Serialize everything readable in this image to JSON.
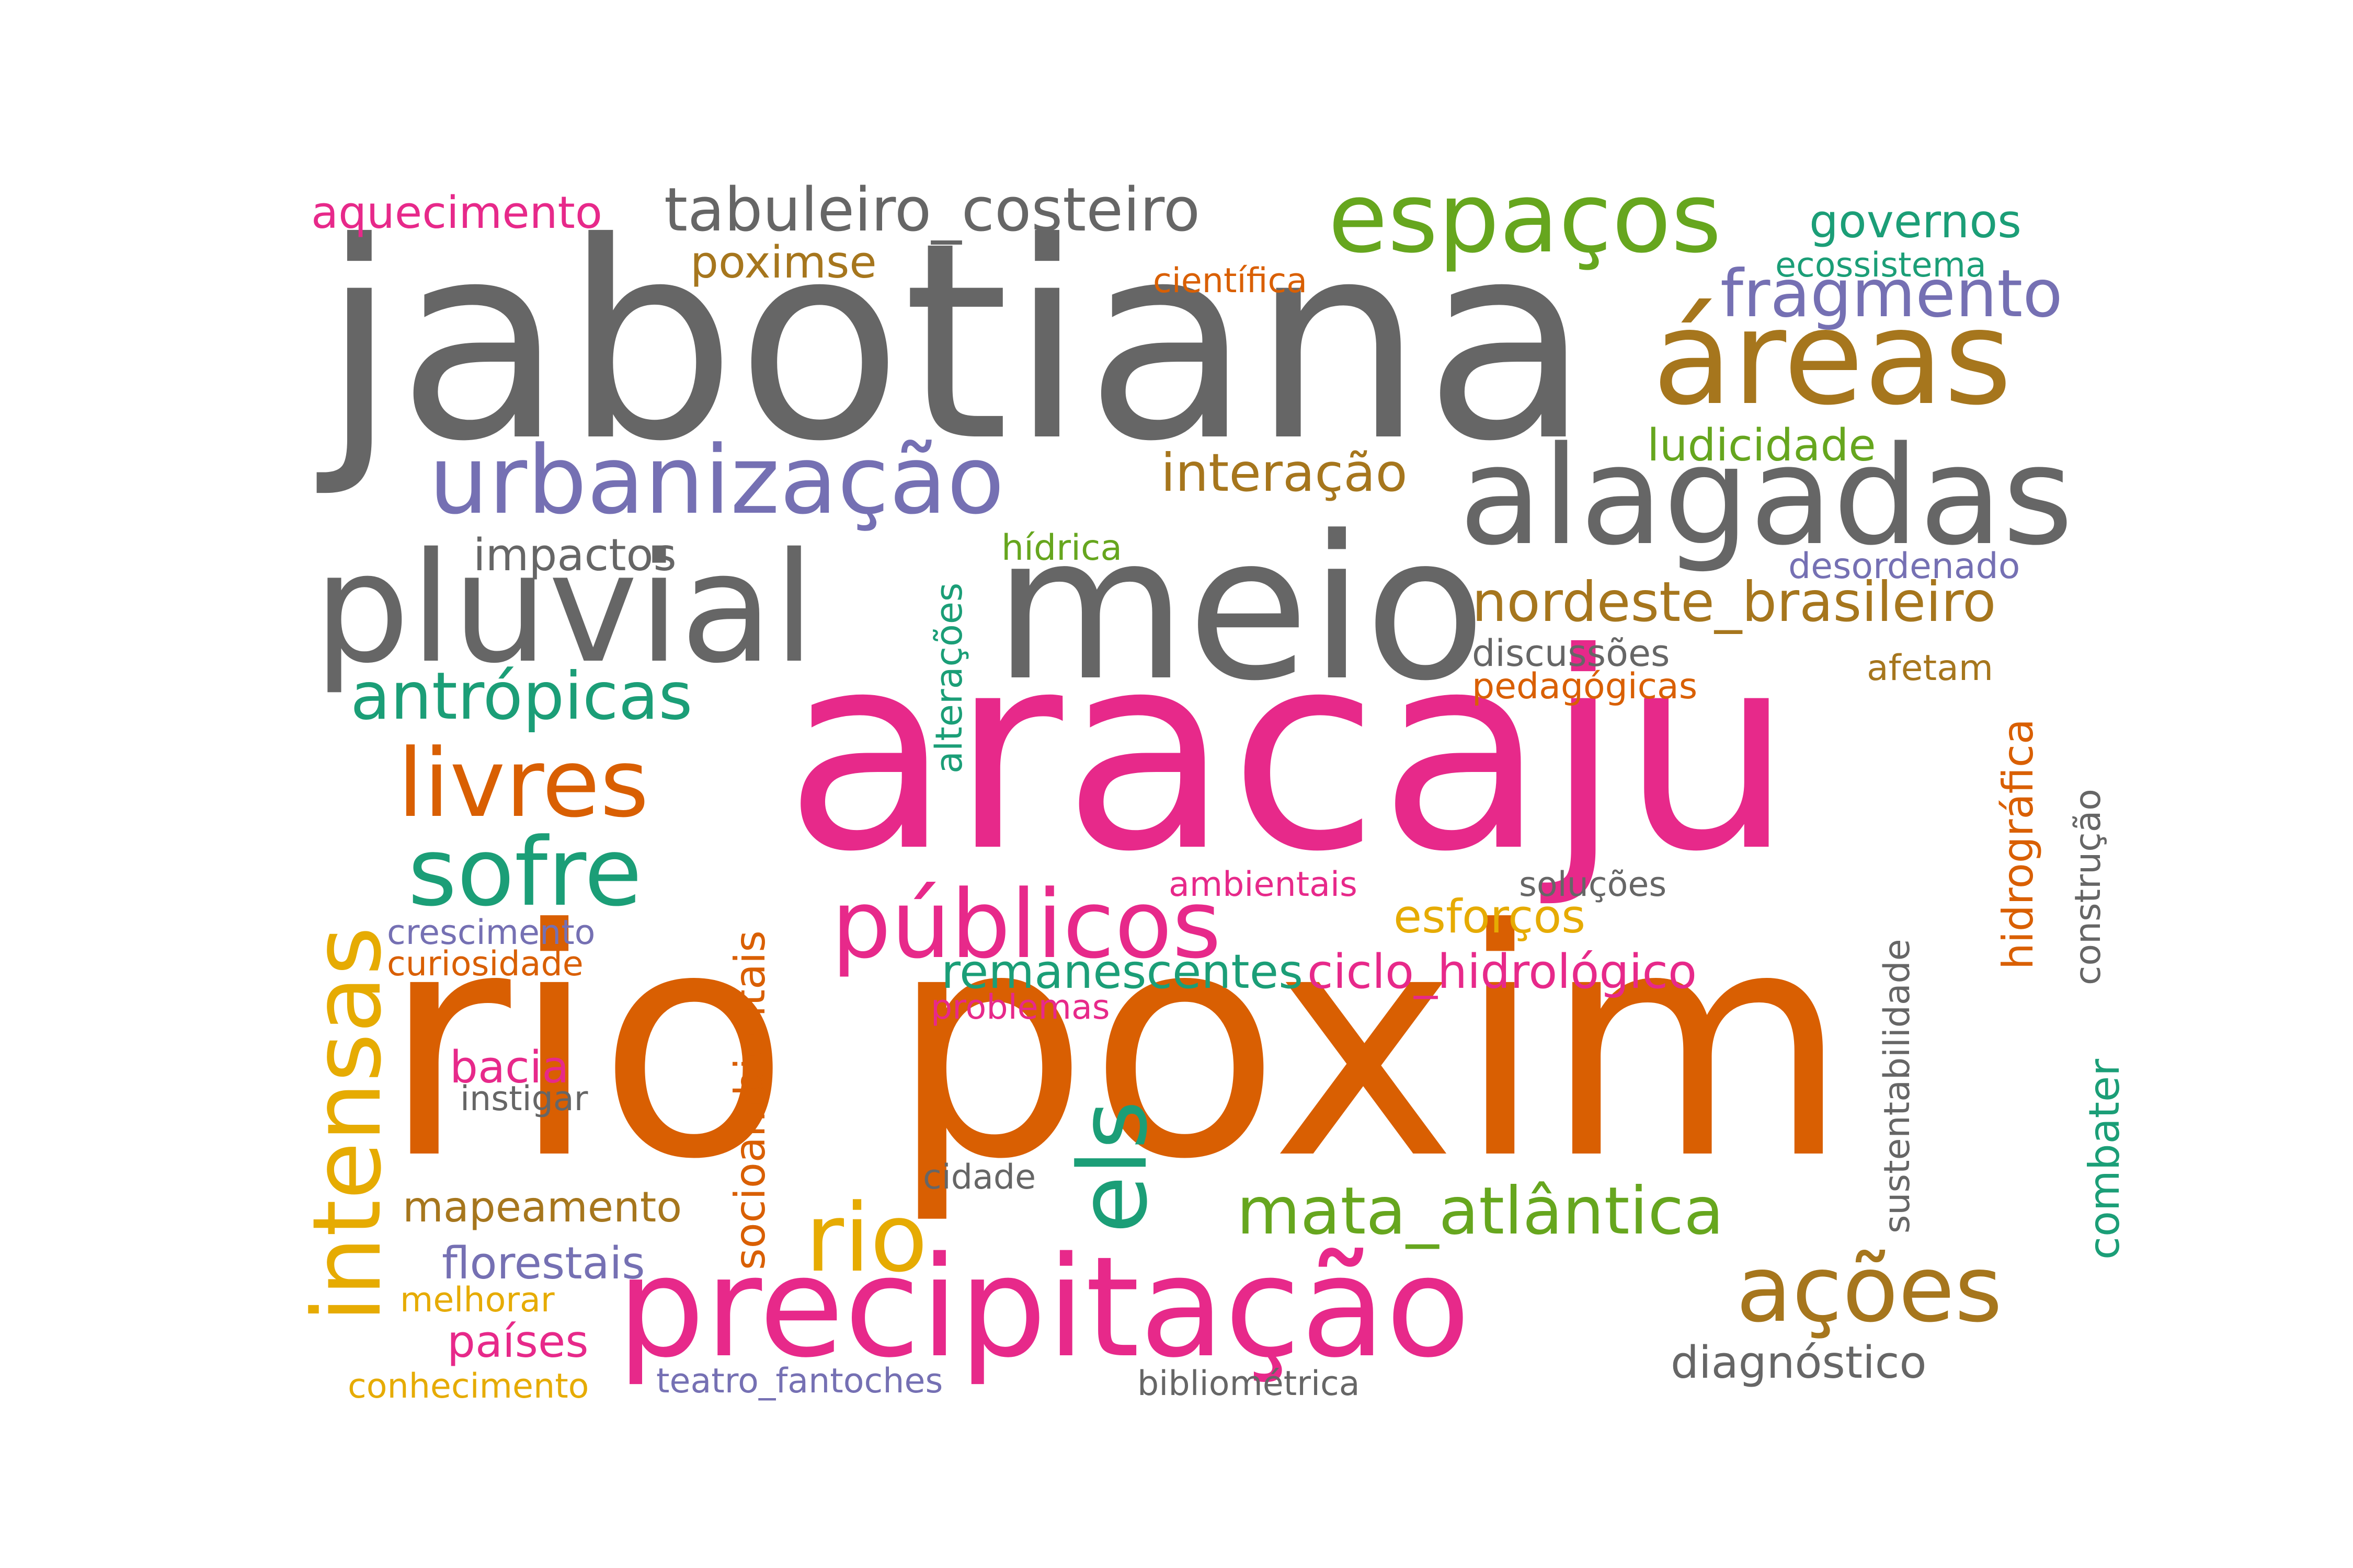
{
  "palette": {
    "gray": "#666666",
    "pink": "#e7298a",
    "orange": "#d95f02",
    "teal": "#1b9e77",
    "purple": "#7570b3",
    "green": "#66a61e",
    "gold": "#e6ab02",
    "brown": "#a6761d"
  },
  "words": [
    {
      "id": "jabotiana",
      "text": "jabotiana",
      "color": "gray"
    },
    {
      "id": "rio-poxim",
      "text": "rio poxim",
      "color": "orange"
    },
    {
      "id": "aracaju",
      "text": "aracaju",
      "color": "pink"
    },
    {
      "id": "meio",
      "text": "meio",
      "color": "gray"
    },
    {
      "id": "pluvial",
      "text": "pluvial",
      "color": "gray"
    },
    {
      "id": "alagadas",
      "text": "alagadas",
      "color": "gray"
    },
    {
      "id": "areas",
      "text": "áreas",
      "color": "brown"
    },
    {
      "id": "precipitacao",
      "text": "precipitação",
      "color": "pink"
    },
    {
      "id": "urbanizacao",
      "text": "urbanização",
      "color": "purple"
    },
    {
      "id": "espacos",
      "text": "espaços",
      "color": "green"
    },
    {
      "id": "publicos",
      "text": "públicos",
      "color": "pink"
    },
    {
      "id": "intensas",
      "text": "intensas",
      "color": "gold"
    },
    {
      "id": "livres",
      "text": "livres",
      "color": "orange"
    },
    {
      "id": "sofre",
      "text": "sofre",
      "color": "teal"
    },
    {
      "id": "els",
      "text": "els",
      "color": "teal"
    },
    {
      "id": "rio",
      "text": "rio",
      "color": "gold"
    },
    {
      "id": "acoes",
      "text": "ações",
      "color": "brown"
    },
    {
      "id": "antropicas",
      "text": "antrópicas",
      "color": "teal"
    },
    {
      "id": "fragmento",
      "text": "fragmento",
      "color": "purple"
    },
    {
      "id": "tabuleiro-costeiro",
      "text": "tabuleiro_costeiro",
      "color": "gray"
    },
    {
      "id": "mata-atlantica",
      "text": "mata_atlântica",
      "color": "green"
    },
    {
      "id": "nordeste-brasileiro",
      "text": "nordeste_brasileiro",
      "color": "brown"
    },
    {
      "id": "interacao",
      "text": "interação",
      "color": "brown"
    },
    {
      "id": "ciclo-hidrologico",
      "text": "ciclo_hidrológico",
      "color": "pink"
    },
    {
      "id": "remanescentes",
      "text": "remanescentes",
      "color": "teal"
    },
    {
      "id": "socioambientais",
      "text": "socioambientais",
      "color": "orange"
    },
    {
      "id": "hidrografica",
      "text": "hidrográfica",
      "color": "orange"
    },
    {
      "id": "alteracoes",
      "text": "alterações",
      "color": "teal"
    },
    {
      "id": "governos",
      "text": "governos",
      "color": "teal"
    },
    {
      "id": "ludicidade",
      "text": "ludicidade",
      "color": "green"
    },
    {
      "id": "esforcos",
      "text": "esforços",
      "color": "gold"
    },
    {
      "id": "combater",
      "text": "combater",
      "color": "teal"
    },
    {
      "id": "diagnostico",
      "text": "diagnóstico",
      "color": "gray"
    },
    {
      "id": "aquecimento",
      "text": "aquecimento",
      "color": "pink"
    },
    {
      "id": "poximse",
      "text": "poximse",
      "color": "brown"
    },
    {
      "id": "impactos",
      "text": "impactos",
      "color": "gray"
    },
    {
      "id": "bacia",
      "text": "bacia",
      "color": "pink"
    },
    {
      "id": "mapeamento",
      "text": "mapeamento",
      "color": "brown"
    },
    {
      "id": "florestais",
      "text": "florestais",
      "color": "purple"
    },
    {
      "id": "paises",
      "text": "países",
      "color": "pink"
    },
    {
      "id": "sustentabilidade",
      "text": "sustentabilidade",
      "color": "gray"
    },
    {
      "id": "construcao",
      "text": "construção",
      "color": "gray"
    },
    {
      "id": "discussoes",
      "text": "discussões",
      "color": "gray"
    },
    {
      "id": "pedagogicas",
      "text": "pedagógicas",
      "color": "orange"
    },
    {
      "id": "afetam",
      "text": "afetam",
      "color": "brown"
    },
    {
      "id": "desordenado",
      "text": "desordenado",
      "color": "purple"
    },
    {
      "id": "hidrica",
      "text": "hídrica",
      "color": "green"
    },
    {
      "id": "cientifica",
      "text": "científica",
      "color": "orange"
    },
    {
      "id": "ecossistema",
      "text": "ecossistema",
      "color": "teal"
    },
    {
      "id": "ambientais",
      "text": "ambientais",
      "color": "pink"
    },
    {
      "id": "solucoes",
      "text": "soluções",
      "color": "gray"
    },
    {
      "id": "crescimento",
      "text": "crescimento",
      "color": "purple"
    },
    {
      "id": "curiosidade",
      "text": "curiosidade",
      "color": "orange"
    },
    {
      "id": "problemas",
      "text": "problemas",
      "color": "pink"
    },
    {
      "id": "instigar",
      "text": "instigar",
      "color": "gray"
    },
    {
      "id": "cidade",
      "text": "cidade",
      "color": "gray"
    },
    {
      "id": "melhorar",
      "text": "melhorar",
      "color": "gold"
    },
    {
      "id": "conhecimento",
      "text": "conhecimento",
      "color": "gold"
    },
    {
      "id": "teatro-fantoches",
      "text": "teatro_fantoches",
      "color": "purple"
    },
    {
      "id": "bibliometrica",
      "text": "bibliométrica",
      "color": "gray"
    }
  ]
}
